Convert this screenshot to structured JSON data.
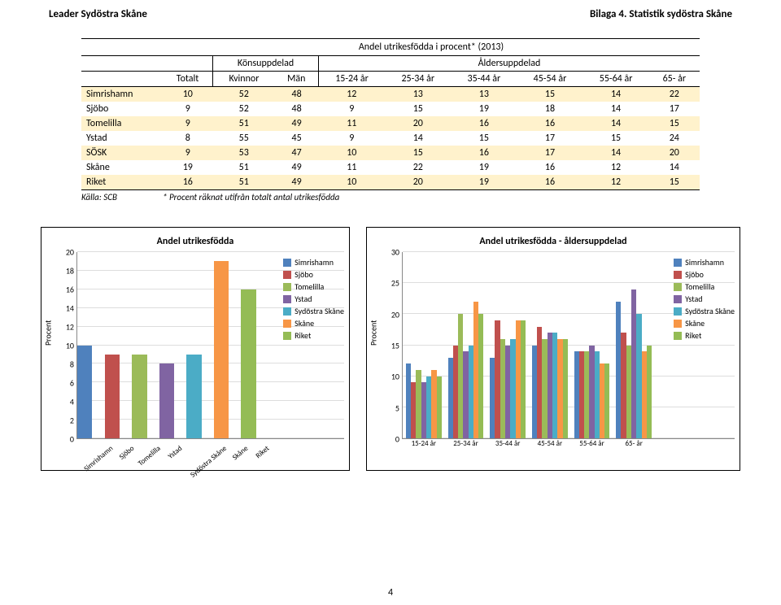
{
  "header": {
    "left": "Leader Sydöstra Skåne",
    "right": "Bilaga 4. Statistik sydöstra Skåne"
  },
  "table": {
    "title": "Andel utrikesfödda i procent* (2013)",
    "grp1": "Könsuppdelad",
    "grp2": "Åldersuppdelad",
    "cols": [
      "Totalt",
      "Kvinnor",
      "Män",
      "15-24 år",
      "25-34 år",
      "35-44 år",
      "45-54 år",
      "55-64 år",
      "65- år"
    ],
    "rows": [
      {
        "label": "Simrishamn",
        "vals": [
          10,
          52,
          48,
          12,
          13,
          13,
          15,
          14,
          22
        ],
        "hl": true
      },
      {
        "label": "Sjöbo",
        "vals": [
          9,
          52,
          48,
          9,
          15,
          19,
          18,
          14,
          17
        ]
      },
      {
        "label": "Tomelilla",
        "vals": [
          9,
          51,
          49,
          11,
          20,
          16,
          16,
          14,
          15
        ],
        "hl": true
      },
      {
        "label": "Ystad",
        "vals": [
          8,
          55,
          45,
          9,
          14,
          15,
          17,
          15,
          24
        ]
      },
      {
        "label": "SÖSK",
        "vals": [
          9,
          53,
          47,
          10,
          15,
          16,
          17,
          14,
          20
        ],
        "hl": true
      },
      {
        "label": "Skåne",
        "vals": [
          19,
          51,
          49,
          11,
          22,
          19,
          16,
          12,
          14
        ]
      },
      {
        "label": "Riket",
        "vals": [
          16,
          51,
          49,
          10,
          20,
          19,
          16,
          12,
          15
        ],
        "hl": true
      }
    ],
    "source_label": "Källa: SCB",
    "source_note": "* Procent räknat utifrån totalt antal utrikesfödda"
  },
  "colors": {
    "series": {
      "Simrishamn": "#4f81bd",
      "Sjöbo": "#c0504d",
      "Tomelilla": "#9bbb59",
      "Ystad": "#8064a2",
      "Sydöstra Skåne": "#4bacc6",
      "Skåne": "#f79646",
      "Riket": "#94bc55"
    },
    "hl_row": "#fff2cc",
    "grid": "#dddddd"
  },
  "chart1": {
    "title": "Andel utrikesfödda",
    "ylabel": "Procent",
    "ymax": 20,
    "ytick": 2,
    "categories": [
      "Simrishamn",
      "Sjöbo",
      "Tomelilla",
      "Ystad",
      "Sydöstra Skåne",
      "Skåne",
      "Riket"
    ],
    "values": [
      10,
      9,
      9,
      8,
      9,
      19,
      16
    ],
    "legend": [
      "Simrishamn",
      "Sjöbo",
      "Tomelilla",
      "Ystad",
      "Sydöstra Skåne",
      "Skåne",
      "Riket"
    ]
  },
  "chart2": {
    "title": "Andel utrikesfödda - åldersuppdelad",
    "ylabel": "Procent",
    "ymax": 30,
    "ytick": 5,
    "categories": [
      "15-24 år",
      "25-34 år",
      "35-44 år",
      "45-54 år",
      "55-64 år",
      "65- år"
    ],
    "series": [
      {
        "name": "Simrishamn",
        "vals": [
          12,
          13,
          13,
          15,
          14,
          22
        ]
      },
      {
        "name": "Sjöbo",
        "vals": [
          9,
          15,
          19,
          18,
          14,
          17
        ]
      },
      {
        "name": "Tomelilla",
        "vals": [
          11,
          20,
          16,
          16,
          14,
          15
        ]
      },
      {
        "name": "Ystad",
        "vals": [
          9,
          14,
          15,
          17,
          15,
          24
        ]
      },
      {
        "name": "Sydöstra Skåne",
        "vals": [
          10,
          15,
          16,
          17,
          14,
          20
        ]
      },
      {
        "name": "Skåne",
        "vals": [
          11,
          22,
          19,
          16,
          12,
          14
        ]
      },
      {
        "name": "Riket",
        "vals": [
          10,
          20,
          19,
          16,
          12,
          15
        ]
      }
    ]
  },
  "page_number": "4"
}
